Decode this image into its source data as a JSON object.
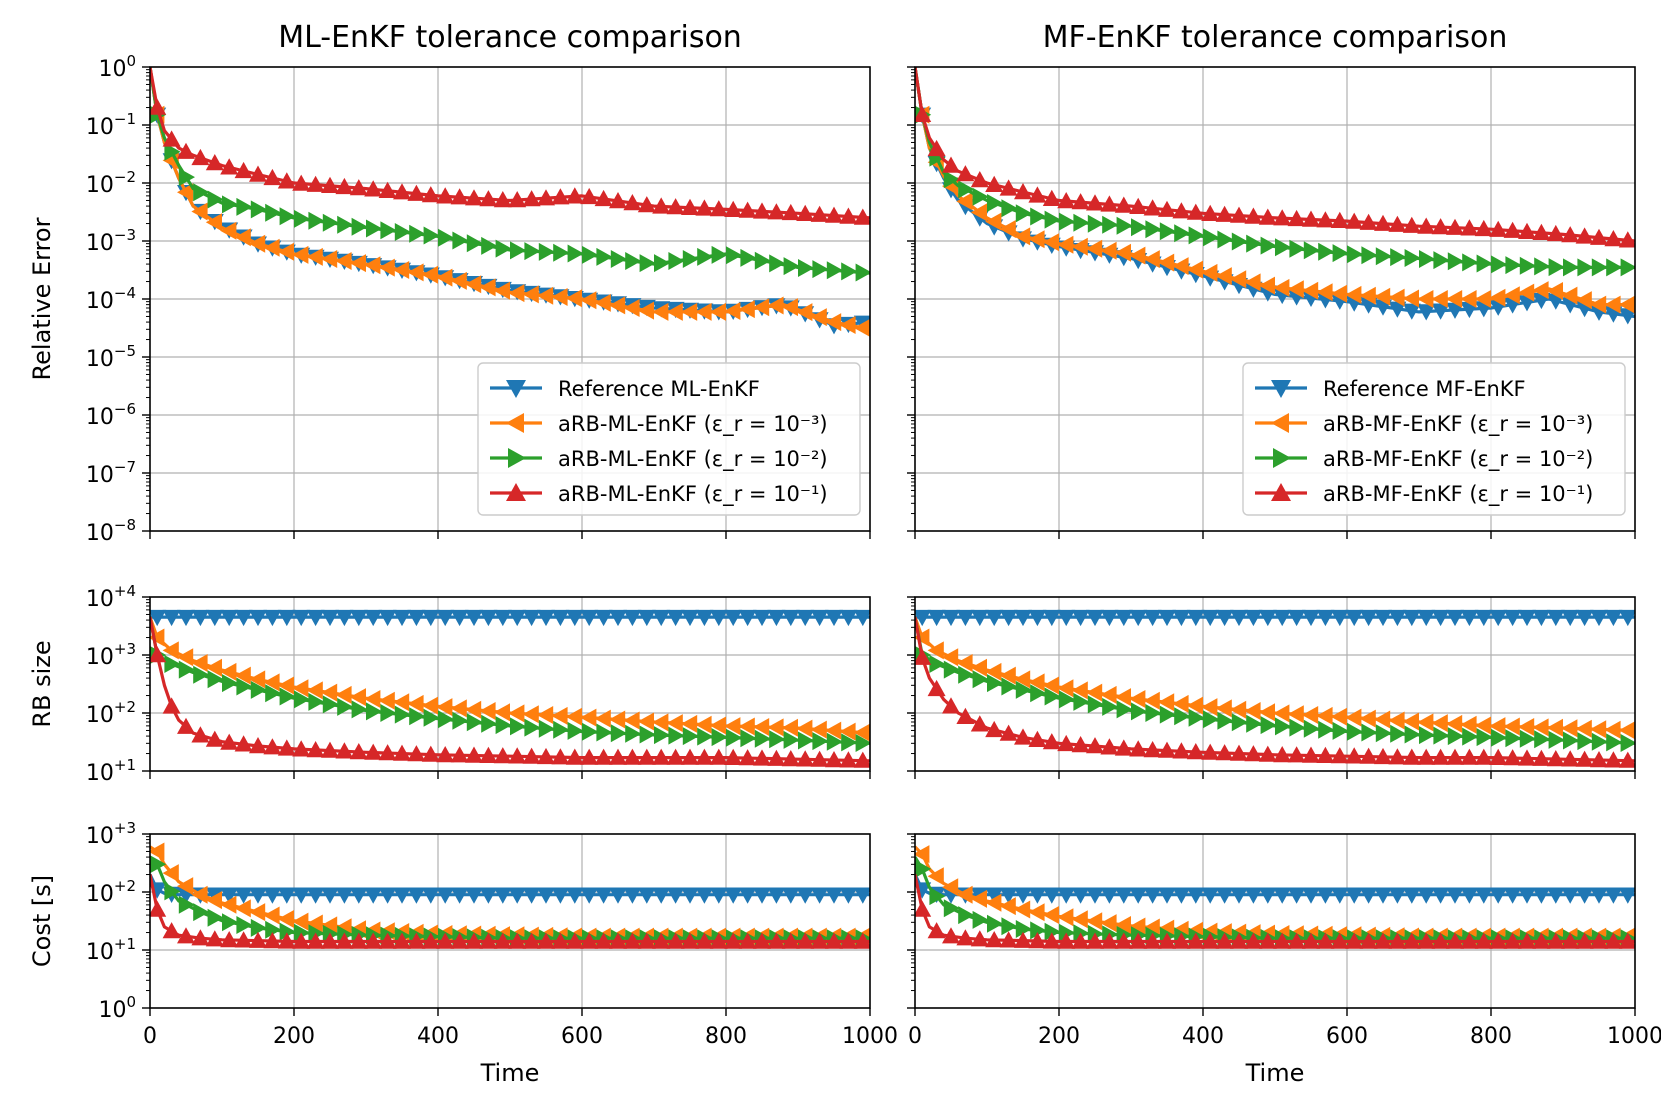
{
  "chart_data": [
    {
      "type": "line",
      "id": "ml-error",
      "title": "ML-EnKF tolerance comparison",
      "ylabel": "Relative Error",
      "xlabel": "",
      "yscale": "log",
      "xlim": [
        0,
        1000
      ],
      "ylim_exp": [
        -8,
        0
      ],
      "yticks": [
        {
          "base": "10",
          "exp": "0"
        },
        {
          "base": "10",
          "exp": "−1"
        },
        {
          "base": "10",
          "exp": "−2"
        },
        {
          "base": "10",
          "exp": "−3"
        },
        {
          "base": "10",
          "exp": "−4"
        },
        {
          "base": "10",
          "exp": "−5"
        },
        {
          "base": "10",
          "exp": "−6"
        },
        {
          "base": "10",
          "exp": "−7"
        },
        {
          "base": "10",
          "exp": "−8"
        }
      ],
      "grid": true,
      "legend": "lower-right",
      "series": [
        {
          "name": "Reference ML-EnKF",
          "color": "#1f77b4",
          "marker": "triangle-down",
          "x": [
            0,
            10,
            20,
            40,
            60,
            100,
            150,
            200,
            300,
            400,
            500,
            600,
            700,
            800,
            880,
            950,
            1000
          ],
          "y": [
            1.0,
            0.15,
            0.05,
            0.012,
            0.004,
            0.0018,
            0.0009,
            0.0006,
            0.0004,
            0.00025,
            0.00014,
            0.0001,
            7e-05,
            6e-05,
            8e-05,
            3.5e-05,
            4e-05
          ]
        },
        {
          "name": "aRB-ML-EnKF (ε_r = 10⁻³)",
          "color": "#ff7f0e",
          "marker": "triangle-left",
          "x": [
            0,
            10,
            20,
            40,
            60,
            100,
            150,
            200,
            300,
            400,
            500,
            600,
            700,
            800,
            880,
            950,
            1000
          ],
          "y": [
            1.0,
            0.15,
            0.05,
            0.012,
            0.004,
            0.0017,
            0.0009,
            0.0006,
            0.0004,
            0.00025,
            0.00013,
            0.0001,
            6e-05,
            6e-05,
            8e-05,
            4e-05,
            3e-05
          ]
        },
        {
          "name": "aRB-ML-EnKF (ε_r = 10⁻²)",
          "color": "#2ca02c",
          "marker": "triangle-right",
          "x": [
            0,
            10,
            20,
            40,
            60,
            100,
            150,
            200,
            300,
            400,
            500,
            600,
            700,
            800,
            900,
            1000
          ],
          "y": [
            1.0,
            0.15,
            0.06,
            0.02,
            0.008,
            0.0045,
            0.0035,
            0.0025,
            0.0017,
            0.0012,
            0.0007,
            0.0006,
            0.0004,
            0.0006,
            0.00035,
            0.00028
          ]
        },
        {
          "name": "aRB-ML-EnKF (ε_r = 10⁻¹)",
          "color": "#d62728",
          "marker": "triangle-up",
          "x": [
            0,
            10,
            20,
            40,
            60,
            100,
            150,
            200,
            300,
            400,
            500,
            600,
            700,
            800,
            900,
            1000
          ],
          "y": [
            1.0,
            0.2,
            0.08,
            0.04,
            0.03,
            0.02,
            0.014,
            0.01,
            0.008,
            0.006,
            0.005,
            0.006,
            0.004,
            0.0035,
            0.003,
            0.0025
          ]
        }
      ]
    },
    {
      "type": "line",
      "id": "mf-error",
      "title": "MF-EnKF tolerance comparison",
      "ylabel": "",
      "xlabel": "",
      "yscale": "log",
      "xlim": [
        0,
        1000
      ],
      "ylim_exp": [
        -8,
        0
      ],
      "grid": true,
      "legend": "lower-right",
      "series": [
        {
          "name": "Reference MF-EnKF",
          "color": "#1f77b4",
          "marker": "triangle-down",
          "x": [
            0,
            10,
            20,
            40,
            60,
            100,
            150,
            200,
            300,
            400,
            500,
            600,
            700,
            800,
            880,
            950,
            1000
          ],
          "y": [
            1.0,
            0.15,
            0.04,
            0.012,
            0.005,
            0.002,
            0.0011,
            0.0008,
            0.0005,
            0.00025,
            0.00012,
            9e-05,
            6e-05,
            7e-05,
            0.0001,
            6e-05,
            5e-05
          ]
        },
        {
          "name": "aRB-MF-EnKF (ε_r = 10⁻³)",
          "color": "#ff7f0e",
          "marker": "triangle-left",
          "x": [
            0,
            10,
            20,
            40,
            60,
            100,
            150,
            200,
            300,
            400,
            500,
            600,
            700,
            800,
            880,
            950,
            1000
          ],
          "y": [
            1.0,
            0.15,
            0.04,
            0.013,
            0.006,
            0.0025,
            0.0012,
            0.0009,
            0.0006,
            0.0003,
            0.00016,
            0.00012,
            0.0001,
            0.0001,
            0.00015,
            8e-05,
            8e-05
          ]
        },
        {
          "name": "aRB-MF-EnKF (ε_r = 10⁻²)",
          "color": "#2ca02c",
          "marker": "triangle-right",
          "x": [
            0,
            10,
            20,
            40,
            60,
            100,
            150,
            200,
            300,
            400,
            500,
            600,
            700,
            800,
            900,
            1000
          ],
          "y": [
            1.0,
            0.15,
            0.05,
            0.015,
            0.009,
            0.005,
            0.003,
            0.0022,
            0.0018,
            0.0012,
            0.0008,
            0.0006,
            0.0005,
            0.0004,
            0.00035,
            0.00035
          ]
        },
        {
          "name": "aRB-MF-EnKF (ε_r = 10⁻¹)",
          "color": "#d62728",
          "marker": "triangle-up",
          "x": [
            0,
            10,
            20,
            40,
            60,
            100,
            150,
            200,
            300,
            400,
            500,
            600,
            700,
            800,
            900,
            1000
          ],
          "y": [
            1.0,
            0.15,
            0.06,
            0.025,
            0.016,
            0.01,
            0.007,
            0.005,
            0.004,
            0.003,
            0.0025,
            0.0022,
            0.0018,
            0.0016,
            0.0013,
            0.001
          ]
        }
      ]
    },
    {
      "type": "line",
      "id": "ml-rb",
      "title": "",
      "ylabel": "RB size",
      "xlabel": "",
      "yscale": "log",
      "xlim": [
        0,
        1000
      ],
      "ylim_exp": [
        1,
        4
      ],
      "yticks": [
        {
          "base": "10",
          "exp": "+4"
        },
        {
          "base": "10",
          "exp": "+3"
        },
        {
          "base": "10",
          "exp": "+2"
        },
        {
          "base": "10",
          "exp": "+1"
        }
      ],
      "grid": true,
      "series": [
        {
          "name": "Reference ML-EnKF",
          "color": "#1f77b4",
          "marker": "triangle-down",
          "x": [
            0,
            1000
          ],
          "y": [
            4500,
            4500
          ]
        },
        {
          "name": "aRB-ML-EnKF (ε_r = 10⁻³)",
          "color": "#ff7f0e",
          "marker": "triangle-left",
          "x": [
            0,
            10,
            30,
            60,
            100,
            150,
            200,
            300,
            400,
            500,
            600,
            700,
            800,
            900,
            1000
          ],
          "y": [
            4500,
            2000,
            1200,
            800,
            550,
            380,
            280,
            180,
            130,
            100,
            85,
            70,
            60,
            55,
            45
          ]
        },
        {
          "name": "aRB-ML-EnKF (ε_r = 10⁻²)",
          "color": "#2ca02c",
          "marker": "triangle-right",
          "x": [
            0,
            10,
            30,
            60,
            100,
            150,
            200,
            300,
            400,
            500,
            600,
            700,
            800,
            900,
            1000
          ],
          "y": [
            4500,
            1000,
            700,
            500,
            350,
            250,
            180,
            110,
            80,
            60,
            48,
            42,
            38,
            34,
            30
          ]
        },
        {
          "name": "aRB-ML-EnKF (ε_r = 10⁻¹)",
          "color": "#d62728",
          "marker": "triangle-up",
          "x": [
            0,
            10,
            20,
            30,
            40,
            60,
            100,
            150,
            200,
            300,
            400,
            500,
            600,
            700,
            800,
            900,
            1000
          ],
          "y": [
            4500,
            1000,
            300,
            130,
            75,
            45,
            32,
            27,
            24,
            21,
            19,
            18,
            17,
            17,
            17,
            16,
            15
          ]
        }
      ]
    },
    {
      "type": "line",
      "id": "mf-rb",
      "title": "",
      "ylabel": "",
      "xlabel": "",
      "yscale": "log",
      "xlim": [
        0,
        1000
      ],
      "ylim_exp": [
        1,
        4
      ],
      "grid": true,
      "series": [
        {
          "name": "Reference MF-EnKF",
          "color": "#1f77b4",
          "marker": "triangle-down",
          "x": [
            0,
            1000
          ],
          "y": [
            4500,
            4500
          ]
        },
        {
          "name": "aRB-MF-EnKF (ε_r = 10⁻³)",
          "color": "#ff7f0e",
          "marker": "triangle-left",
          "x": [
            0,
            10,
            30,
            60,
            100,
            150,
            200,
            300,
            400,
            500,
            600,
            700,
            800,
            900,
            1000
          ],
          "y": [
            4500,
            2000,
            1200,
            800,
            550,
            380,
            280,
            180,
            130,
            100,
            85,
            70,
            60,
            55,
            50
          ]
        },
        {
          "name": "aRB-MF-EnKF (ε_r = 10⁻²)",
          "color": "#2ca02c",
          "marker": "triangle-right",
          "x": [
            0,
            10,
            30,
            60,
            100,
            150,
            200,
            300,
            400,
            500,
            600,
            700,
            800,
            900,
            1000
          ],
          "y": [
            4500,
            1000,
            700,
            500,
            350,
            250,
            180,
            110,
            80,
            60,
            48,
            42,
            38,
            34,
            30
          ]
        },
        {
          "name": "aRB-MF-EnKF (ε_r = 10⁻¹)",
          "color": "#d62728",
          "marker": "triangle-up",
          "x": [
            0,
            10,
            20,
            40,
            60,
            100,
            150,
            200,
            300,
            400,
            500,
            600,
            700,
            800,
            900,
            1000
          ],
          "y": [
            4500,
            900,
            400,
            170,
            100,
            55,
            38,
            30,
            24,
            21,
            19,
            18,
            17,
            17,
            16,
            15
          ]
        }
      ]
    },
    {
      "type": "line",
      "id": "ml-cost",
      "title": "",
      "ylabel": "Cost   [s]",
      "xlabel": "Time",
      "yscale": "log",
      "xlim": [
        0,
        1000
      ],
      "ylim_exp": [
        0,
        3
      ],
      "xticks": [
        "0",
        "200",
        "400",
        "600",
        "800",
        "1000"
      ],
      "yticks": [
        {
          "base": "10",
          "exp": "+3"
        },
        {
          "base": "10",
          "exp": "+2"
        },
        {
          "base": "10",
          "exp": "+1"
        },
        {
          "base": "10",
          "exp": "0"
        }
      ],
      "grid": true,
      "series": [
        {
          "name": "Reference ML-EnKF",
          "color": "#1f77b4",
          "marker": "triangle-down",
          "x": [
            0,
            10,
            20,
            40,
            1000
          ],
          "y": [
            200,
            110,
            95,
            90,
            90
          ]
        },
        {
          "name": "aRB-ML-EnKF (ε_r = 10⁻³)",
          "color": "#ff7f0e",
          "marker": "triangle-left",
          "x": [
            0,
            10,
            20,
            40,
            70,
            100,
            150,
            200,
            300,
            400,
            500,
            600,
            700,
            800,
            900,
            1000
          ],
          "y": [
            600,
            500,
            300,
            150,
            90,
            65,
            45,
            32,
            22,
            19,
            18,
            17,
            17,
            17,
            17,
            17
          ]
        },
        {
          "name": "aRB-ML-EnKF (ε_r = 10⁻²)",
          "color": "#2ca02c",
          "marker": "triangle-right",
          "x": [
            0,
            10,
            20,
            40,
            70,
            100,
            150,
            200,
            300,
            400,
            500,
            600,
            700,
            800,
            900,
            1000
          ],
          "y": [
            400,
            300,
            150,
            70,
            45,
            32,
            24,
            20,
            18,
            17,
            16,
            16,
            16,
            16,
            16,
            16
          ]
        },
        {
          "name": "aRB-ML-EnKF (ε_r = 10⁻¹)",
          "color": "#d62728",
          "marker": "triangle-up",
          "x": [
            0,
            10,
            20,
            40,
            70,
            100,
            200,
            400,
            600,
            800,
            1000
          ],
          "y": [
            200,
            50,
            25,
            18,
            16,
            15,
            14,
            14,
            14,
            14,
            14
          ]
        }
      ]
    },
    {
      "type": "line",
      "id": "mf-cost",
      "title": "",
      "ylabel": "",
      "xlabel": "Time",
      "yscale": "log",
      "xlim": [
        0,
        1000
      ],
      "ylim_exp": [
        0,
        3
      ],
      "xticks": [
        "0",
        "200",
        "400",
        "600",
        "800",
        "1000"
      ],
      "grid": true,
      "series": [
        {
          "name": "Reference MF-EnKF",
          "color": "#1f77b4",
          "marker": "triangle-down",
          "x": [
            0,
            10,
            20,
            40,
            1000
          ],
          "y": [
            200,
            110,
            95,
            90,
            90
          ]
        },
        {
          "name": "aRB-MF-EnKF (ε_r = 10⁻³)",
          "color": "#ff7f0e",
          "marker": "triangle-left",
          "x": [
            0,
            10,
            20,
            40,
            70,
            100,
            150,
            200,
            300,
            400,
            500,
            600,
            700,
            800,
            900,
            1000
          ],
          "y": [
            600,
            450,
            250,
            140,
            90,
            70,
            50,
            38,
            26,
            21,
            19,
            18,
            17,
            17,
            17,
            17
          ]
        },
        {
          "name": "aRB-MF-EnKF (ε_r = 10⁻²)",
          "color": "#2ca02c",
          "marker": "triangle-right",
          "x": [
            0,
            10,
            20,
            40,
            70,
            100,
            150,
            200,
            300,
            400,
            500,
            600,
            700,
            800,
            900,
            1000
          ],
          "y": [
            400,
            250,
            120,
            60,
            40,
            30,
            23,
            20,
            18,
            17,
            16,
            16,
            16,
            16,
            16,
            16
          ]
        },
        {
          "name": "aRB-MF-EnKF (ε_r = 10⁻¹)",
          "color": "#d62728",
          "marker": "triangle-up",
          "x": [
            0,
            10,
            20,
            40,
            70,
            100,
            200,
            400,
            600,
            800,
            1000
          ],
          "y": [
            200,
            50,
            25,
            18,
            16,
            15,
            14,
            14,
            14,
            14,
            14
          ]
        }
      ]
    }
  ]
}
